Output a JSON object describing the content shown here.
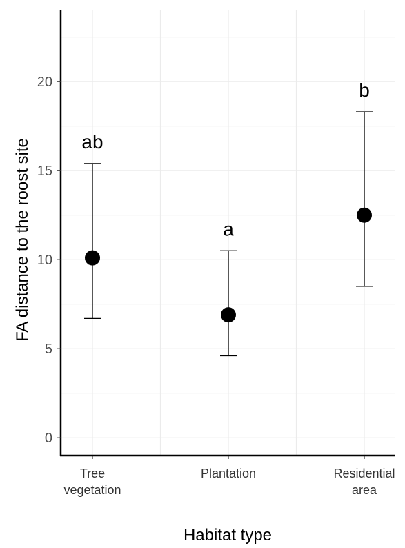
{
  "chart_data": {
    "type": "scatter",
    "title": "",
    "xlabel": "Habitat type",
    "ylabel": "FA distance to the roost site",
    "categories": [
      {
        "lines": [
          "Tree",
          "vegetation"
        ]
      },
      {
        "lines": [
          "Plantation"
        ]
      },
      {
        "lines": [
          "Residential",
          "area"
        ]
      }
    ],
    "points": [
      {
        "category_index": 0,
        "y": 10.1,
        "lower": 6.7,
        "upper": 15.4,
        "letter": "ab"
      },
      {
        "category_index": 1,
        "y": 6.9,
        "lower": 4.6,
        "upper": 10.5,
        "letter": "a"
      },
      {
        "category_index": 2,
        "y": 12.5,
        "lower": 8.5,
        "upper": 18.3,
        "letter": "b"
      }
    ],
    "yticks": [
      0,
      5,
      10,
      15,
      20
    ],
    "ylim": [
      -1,
      24
    ],
    "grid": true,
    "colors": {
      "point": "#000000",
      "grid": "#ebebeb",
      "axis": "#000000"
    }
  }
}
